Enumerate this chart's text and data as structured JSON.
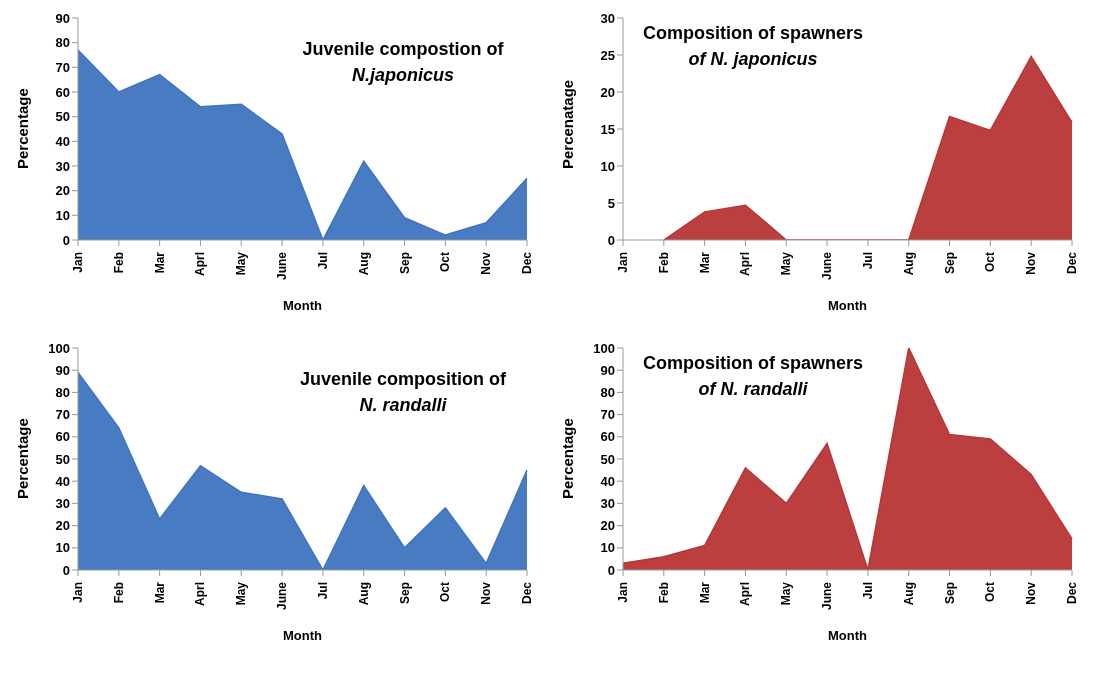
{
  "chart_data": [
    {
      "type": "area",
      "title": "Juvenile compostion of\nN.japonicus",
      "xlabel": "Month",
      "ylabel": "Percentage",
      "categories": [
        "Jan",
        "Feb",
        "Mar",
        "Aprl",
        "May",
        "June",
        "Jul",
        "Aug",
        "Sep",
        "Oct",
        "Nov",
        "Dec"
      ],
      "series": [
        {
          "color": "#3f74c0",
          "values": [
            77,
            60,
            67,
            54,
            55,
            43,
            0,
            32,
            9,
            2,
            7,
            25
          ]
        }
      ],
      "ylim": [
        0,
        90
      ],
      "yticks": [
        0,
        10,
        20,
        30,
        40,
        50,
        60,
        70,
        80,
        90
      ],
      "grid": false,
      "legend": false
    },
    {
      "type": "area",
      "title": "Composition of spawners\nof N. japonicus",
      "xlabel": "Month",
      "ylabel": "Percenatage",
      "categories": [
        "Jan",
        "Feb",
        "Mar",
        "Aprl",
        "May",
        "June",
        "Jul",
        "Aug",
        "Sep",
        "Oct",
        "Nov",
        "Dec"
      ],
      "series": [
        {
          "color": "#b83535",
          "values": [
            null,
            0,
            3.8,
            4.7,
            0,
            0,
            0,
            0,
            16.7,
            14.8,
            24.8,
            15.9
          ]
        }
      ],
      "ylim": [
        0,
        30
      ],
      "yticks": [
        0,
        5,
        10,
        15,
        20,
        25,
        30
      ],
      "grid": false,
      "legend": false
    },
    {
      "type": "area",
      "title": "Juvenile composition of\nN. randalli",
      "xlabel": "Month",
      "ylabel": "Percentage",
      "categories": [
        "Jan",
        "Feb",
        "Mar",
        "Aprl",
        "May",
        "June",
        "Jul",
        "Aug",
        "Sep",
        "Oct",
        "Nov",
        "Dec"
      ],
      "series": [
        {
          "color": "#3f74c0",
          "values": [
            89,
            64,
            23,
            47,
            35,
            32,
            0,
            38,
            10,
            28,
            3,
            45
          ]
        }
      ],
      "ylim": [
        0,
        100
      ],
      "yticks": [
        0,
        10,
        20,
        30,
        40,
        50,
        60,
        70,
        80,
        90,
        100
      ],
      "grid": false,
      "legend": false
    },
    {
      "type": "area",
      "title": "Composition of  spawners\nof  N. randalli",
      "xlabel": "Month",
      "ylabel": "Percentage",
      "categories": [
        "Jan",
        "Feb",
        "Mar",
        "Aprl",
        "May",
        "June",
        "Jul",
        "Aug",
        "Sep",
        "Oct",
        "Nov",
        "Dec"
      ],
      "series": [
        {
          "color": "#b83535",
          "values": [
            3,
            6,
            11,
            46,
            30,
            57,
            0,
            100,
            61,
            59,
            43,
            14
          ]
        }
      ],
      "ylim": [
        0,
        100
      ],
      "yticks": [
        0,
        10,
        20,
        30,
        40,
        50,
        60,
        70,
        80,
        90,
        100
      ],
      "grid": false,
      "legend": false
    }
  ]
}
